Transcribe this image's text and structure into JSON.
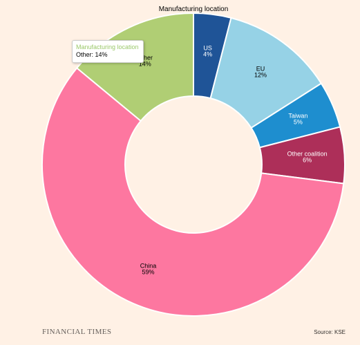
{
  "chart_data": {
    "type": "pie",
    "variant": "donut",
    "title": "Manufacturing location",
    "slices": [
      {
        "label": "US",
        "value": 4,
        "value_label": "4%",
        "color": "#1f5497",
        "text_color": "#ffffff"
      },
      {
        "label": "EU",
        "value": 12,
        "value_label": "12%",
        "color": "#96d2e6",
        "text_color": "#000000"
      },
      {
        "label": "Taiwan",
        "value": 5,
        "value_label": "5%",
        "color": "#1e8ecf",
        "text_color": "#ffffff"
      },
      {
        "label": "Other coalition",
        "value": 6,
        "value_label": "6%",
        "color": "#ad2f59",
        "text_color": "#ffffff"
      },
      {
        "label": "China",
        "value": 59,
        "value_label": "59%",
        "color": "#fd77a0",
        "text_color": "#000000"
      },
      {
        "label": "Other",
        "value": 14,
        "value_label": "14%",
        "color": "#b0ce74",
        "text_color": "#000000"
      }
    ]
  },
  "tooltip": {
    "title": "Manufacturing location",
    "text": "Other: 14%"
  },
  "footer": {
    "brand": "FINANCIAL TIMES",
    "source": "Source: KSE"
  }
}
